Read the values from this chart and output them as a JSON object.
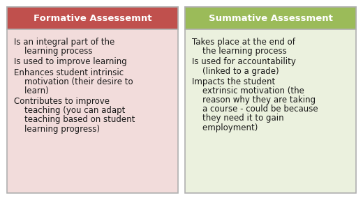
{
  "left_title": "Formative Assessemnt",
  "right_title": "Summative Assessment",
  "left_header_color": "#c0504d",
  "right_header_color": "#9bbb59",
  "left_body_color": "#f2dcdb",
  "right_body_color": "#ebf1de",
  "header_text_color": "#ffffff",
  "body_text_color": "#1a1a1a",
  "border_color": "#b0b0b0",
  "bg_color": "#ffffff",
  "left_bullets": [
    "Is an integral part of the\n    learning process",
    "Is used to improve learning",
    "Enhances student intrinsic\n    motivation (their desire to\n    learn)",
    "Contributes to improve\n    teaching (you can adapt\n    teaching based on student\n    learning progress)"
  ],
  "right_bullets": [
    "Takes place at the end of\n    the learning process",
    "Is used for accountability\n    (linked to a grade)",
    "Impacts the student\n    extrinsic motivation (the\n    reason why they are taking\n    a course - could be because\n    they need it to gain\n    employment)"
  ],
  "title_fontsize": 9.5,
  "body_fontsize": 8.5,
  "fig_width": 5.2,
  "fig_height": 2.87,
  "dpi": 100
}
